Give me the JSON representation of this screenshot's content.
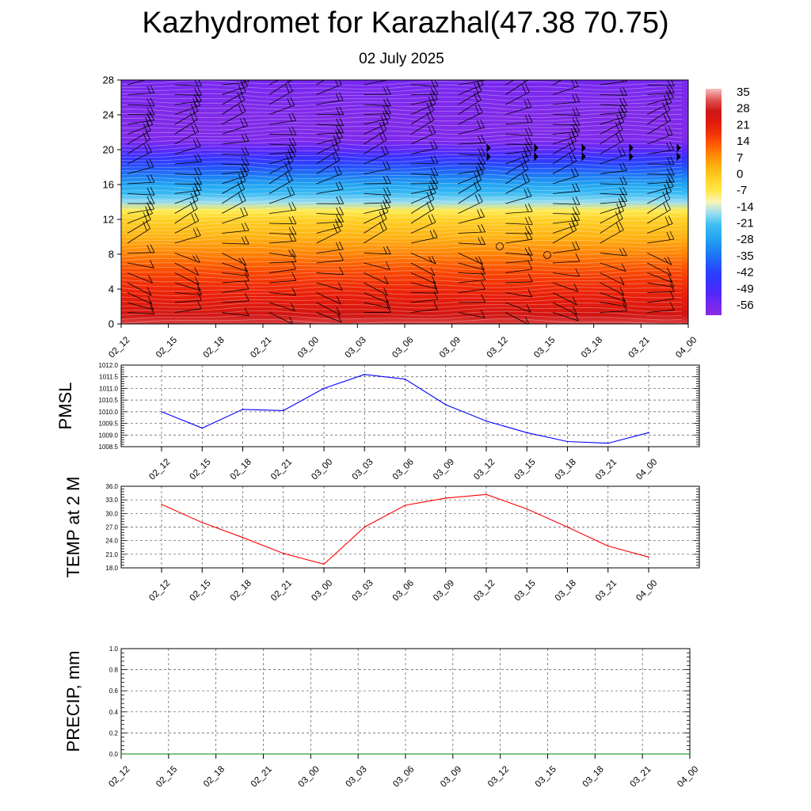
{
  "header": {
    "title": "Kazhydromet for Karazhal(47.38 70.75)",
    "subtitle": "02 July 2025"
  },
  "chart_data": [
    {
      "type": "heatmap",
      "id": "cross-section",
      "y_ticks": [
        "0",
        "4",
        "8",
        "12",
        "16",
        "20",
        "24",
        "28"
      ],
      "ylim": [
        0,
        28
      ],
      "x_ticks": [
        "02_12",
        "02_15",
        "02_18",
        "02_21",
        "03_00",
        "03_03",
        "03_06",
        "03_09",
        "03_12",
        "03_15",
        "03_18",
        "03_21",
        "04_00"
      ],
      "colorbar_labels": [
        "35",
        "28",
        "21",
        "14",
        "7",
        "0",
        "-7",
        "-14",
        "-21",
        "-28",
        "-35",
        "-42",
        "-49",
        "-56"
      ],
      "color_range": [
        -60,
        38
      ],
      "temperature_profile": {
        "levels": [
          0,
          1,
          2,
          3,
          4,
          6,
          8,
          10,
          12,
          13,
          14,
          15,
          16,
          17,
          18,
          19,
          20,
          21,
          22,
          24,
          26,
          28
        ],
        "values": [
          32,
          27,
          24,
          22,
          20,
          16,
          10,
          4,
          -1,
          -7,
          -16,
          -22,
          -27,
          -33,
          -39,
          -45,
          -52,
          -57,
          -58,
          -58,
          -57,
          -56
        ]
      },
      "wind_barbs": "present",
      "colors": {
        "low": "#8a2be2",
        "high": "#f2b2b2"
      }
    },
    {
      "type": "line",
      "id": "pmsl",
      "ylabel": "PMSL",
      "categories": [
        "02_12",
        "02_15",
        "02_18",
        "02_21",
        "03_00",
        "03_03",
        "03_06",
        "03_09",
        "03_12",
        "03_15",
        "03_18",
        "03_21",
        "04_00"
      ],
      "series": [
        {
          "values": [
            1010.0,
            1009.3,
            1010.1,
            1010.05,
            1011.0,
            1011.6,
            1011.4,
            1010.3,
            1009.6,
            1009.1,
            1008.72,
            1008.65,
            1009.1
          ],
          "color": "#0000ff"
        }
      ],
      "ylim": [
        1008.5,
        1012.0
      ],
      "y_ticks": [
        "1008.5",
        "1009.0",
        "1009.5",
        "1010.0",
        "1010.5",
        "1011.0",
        "1011.5",
        "1012.0"
      ],
      "grid": true
    },
    {
      "type": "line",
      "id": "temp2m",
      "ylabel": "TEMP at 2 M",
      "categories": [
        "02_12",
        "02_15",
        "02_18",
        "02_21",
        "03_00",
        "03_03",
        "03_06",
        "03_09",
        "03_12",
        "03_15",
        "03_18",
        "03_21",
        "04_00"
      ],
      "series": [
        {
          "values": [
            32.0,
            28.0,
            24.7,
            21.2,
            18.8,
            27.0,
            31.8,
            33.4,
            34.2,
            31.0,
            27.0,
            22.8,
            20.4
          ],
          "color": "#ff0000"
        }
      ],
      "ylim": [
        18.0,
        36.0
      ],
      "y_ticks": [
        "18.0",
        "21.0",
        "24.0",
        "27.0",
        "30.0",
        "33.0",
        "36.0"
      ],
      "grid": true
    },
    {
      "type": "line",
      "id": "precip",
      "ylabel": "PRECIP, mm",
      "categories": [
        "02_12",
        "02_15",
        "02_18",
        "02_21",
        "03_00",
        "03_03",
        "03_06",
        "03_09",
        "03_12",
        "03_15",
        "03_18",
        "03_21",
        "04_00"
      ],
      "series": [
        {
          "values": [
            0,
            0,
            0,
            0,
            0,
            0,
            0,
            0,
            0,
            0,
            0,
            0,
            0
          ],
          "color": "#008000"
        }
      ],
      "ylim": [
        0.0,
        1.0
      ],
      "y_ticks": [
        "0.0",
        "0.2",
        "0.4",
        "0.6",
        "0.8",
        "1.0"
      ],
      "grid": true
    }
  ]
}
